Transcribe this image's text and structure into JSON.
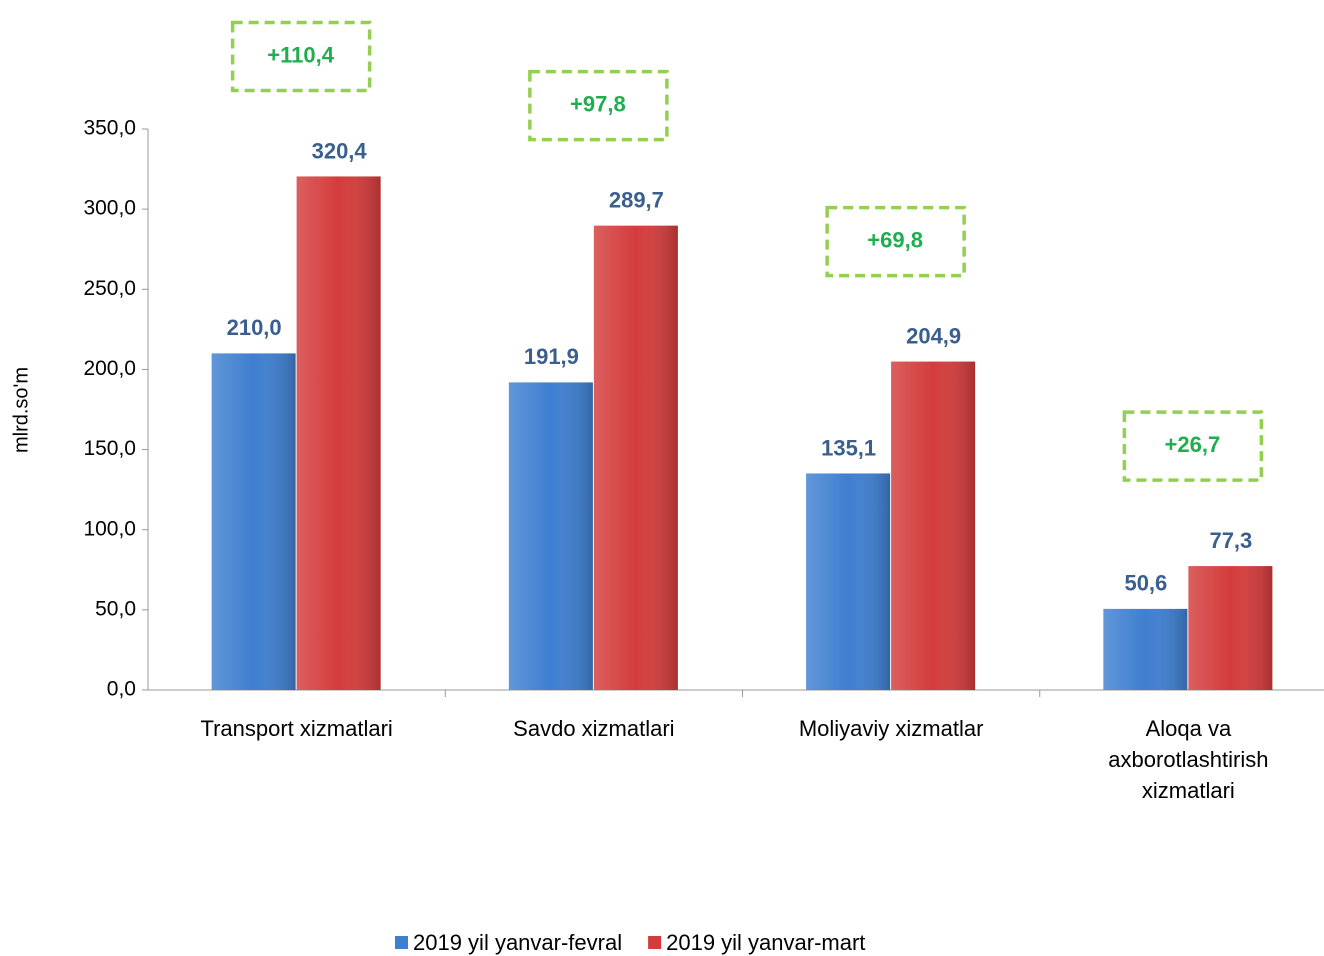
{
  "chart_data": {
    "type": "bar",
    "ylabel": "mlrd.so'm",
    "categories": [
      "Transport xizmatlari",
      "Savdo xizmatlari",
      "Moliyaviy xizmatlar",
      "Aloqa va axborotlashtirish xizmatlari"
    ],
    "series": [
      {
        "name": "2019 yil yanvar-fevral",
        "color": "#3f7fd0",
        "values": [
          210.0,
          191.9,
          135.1,
          50.6
        ],
        "value_labels": [
          "210,0",
          "191,9",
          "135,1",
          "50,6"
        ]
      },
      {
        "name": "2019 yil yanvar-mart",
        "color": "#d43c3c",
        "values": [
          320.4,
          289.7,
          204.9,
          77.3
        ],
        "value_labels": [
          "320,4",
          "289,7",
          "204,9",
          "77,3"
        ]
      }
    ],
    "annotations": [
      "+110,4",
      "+97,8",
      "+69,8",
      "+26,7"
    ],
    "ylim": [
      0,
      350
    ],
    "yticks": [
      {
        "value": 0,
        "label": "0,0"
      },
      {
        "value": 50,
        "label": "50,0"
      },
      {
        "value": 100,
        "label": "100,0"
      },
      {
        "value": 150,
        "label": "150,0"
      },
      {
        "value": 200,
        "label": "200,0"
      },
      {
        "value": 250,
        "label": "250,0"
      },
      {
        "value": 300,
        "label": "300,0"
      },
      {
        "value": 350,
        "label": "350,0"
      }
    ],
    "legend": "bottom"
  }
}
